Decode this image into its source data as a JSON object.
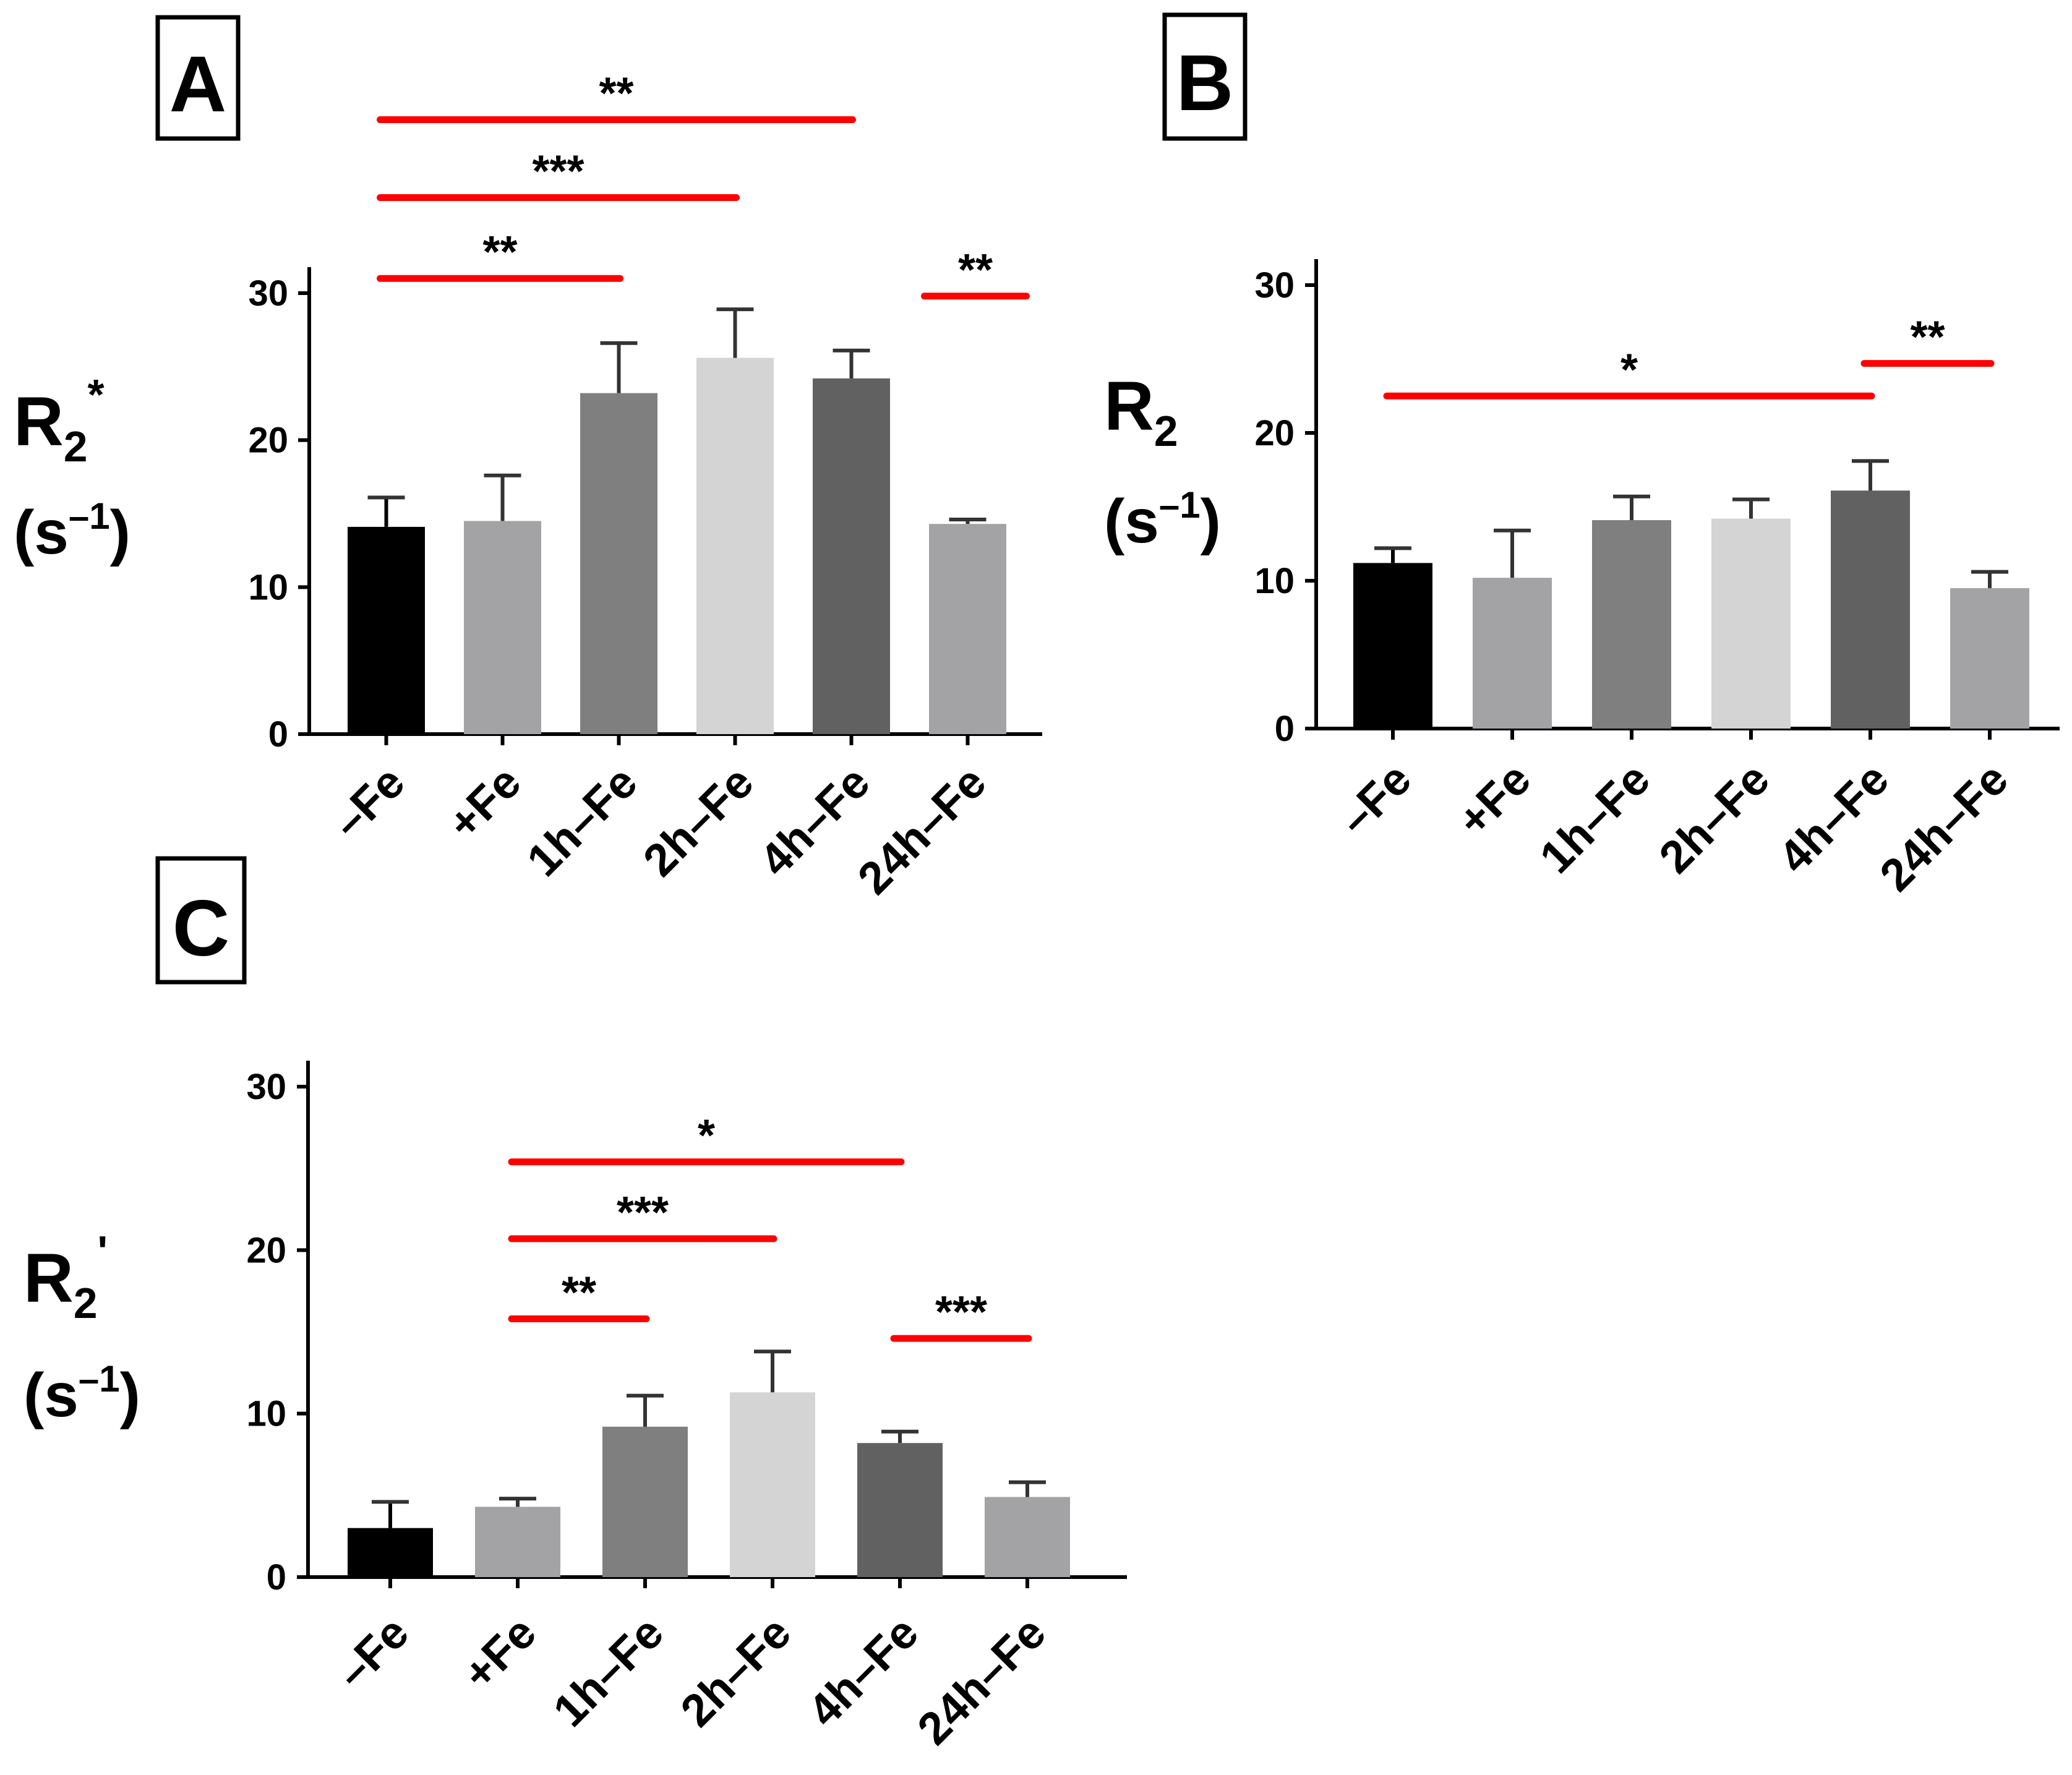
{
  "figure": {
    "panels": [
      "A",
      "B",
      "C"
    ]
  },
  "colors": {
    "axis": "#000000",
    "significance": "#ff0000",
    "bar_fills": [
      "#000000",
      "#a3a3a6",
      "#7f7f7f",
      "#d4d4d4",
      "#616161",
      "#a3a3a6"
    ]
  },
  "chart_data": [
    {
      "panel": "A",
      "type": "bar",
      "ylabel": "R2*",
      "ylabel_main": "R",
      "ylabel_sub": "2",
      "ylabel_sup": "*",
      "yunit": "(s–1)",
      "yunit_base": "(s",
      "yunit_exp": "–1",
      "yunit_close": ")",
      "ylim": [
        0,
        30
      ],
      "yticks": [
        0,
        10,
        20,
        30
      ],
      "yticks_text": [
        "0",
        "10",
        "20",
        "30"
      ],
      "categories": [
        "–Fe",
        "+Fe",
        "1h–Fe",
        "2h–Fe",
        "4h–Fe",
        "24h–Fe"
      ],
      "values": [
        14.1,
        14.5,
        23.2,
        25.6,
        24.2,
        14.3
      ],
      "errors": [
        2.0,
        3.1,
        3.4,
        3.3,
        1.9,
        0.3
      ],
      "significance": [
        {
          "from": 0,
          "to": 2,
          "label": "**",
          "y": 31.0
        },
        {
          "from": 0,
          "to": 3,
          "label": "***",
          "y": 36.5
        },
        {
          "from": 0,
          "to": 4,
          "label": "**",
          "y": 41.8
        },
        {
          "from": 5,
          "to": 5,
          "label": "**",
          "y": 29.8
        }
      ]
    },
    {
      "panel": "B",
      "type": "bar",
      "ylabel": "R2",
      "ylabel_main": "R",
      "ylabel_sub": "2",
      "ylabel_sup": "",
      "yunit": "(s–1)",
      "yunit_base": "(s",
      "yunit_exp": "–1",
      "yunit_close": ")",
      "ylim": [
        0,
        30
      ],
      "yticks": [
        0,
        10,
        20,
        30
      ],
      "yticks_text": [
        "0",
        "10",
        "20",
        "30"
      ],
      "categories": [
        "–Fe",
        "+Fe",
        "1h–Fe",
        "2h–Fe",
        "4h–Fe",
        "24h–Fe"
      ],
      "values": [
        11.2,
        10.2,
        14.1,
        14.2,
        16.1,
        9.5
      ],
      "errors": [
        1.0,
        3.2,
        1.6,
        1.3,
        2.0,
        1.1
      ],
      "significance": [
        {
          "from": 0,
          "to": 4,
          "label": "*",
          "y": 22.5
        },
        {
          "from": 4,
          "to": 5,
          "label": "**",
          "y": 24.7
        }
      ]
    },
    {
      "panel": "C",
      "type": "bar",
      "ylabel": "R2'",
      "ylabel_main": "R",
      "ylabel_sub": "2",
      "ylabel_sup": "'",
      "yunit": "(s–1)",
      "yunit_base": "(s",
      "yunit_exp": "–1",
      "yunit_close": ")",
      "ylim": [
        0,
        30
      ],
      "yticks": [
        0,
        10,
        20,
        30
      ],
      "yticks_text": [
        "0",
        "10",
        "20",
        "30"
      ],
      "categories": [
        "–Fe",
        "+Fe",
        "1h–Fe",
        "2h–Fe",
        "4h–Fe",
        "24h–Fe"
      ],
      "values": [
        3.0,
        4.3,
        9.2,
        11.3,
        8.2,
        4.9
      ],
      "errors": [
        1.6,
        0.5,
        1.9,
        2.5,
        0.7,
        0.9
      ],
      "significance": [
        {
          "from": 1,
          "to": 2,
          "label": "**",
          "y": 15.8
        },
        {
          "from": 1,
          "to": 3,
          "label": "***",
          "y": 20.7
        },
        {
          "from": 1,
          "to": 4,
          "label": "*",
          "y": 25.4
        },
        {
          "from": 4,
          "to": 5,
          "label": "***",
          "y": 14.6
        }
      ]
    }
  ]
}
